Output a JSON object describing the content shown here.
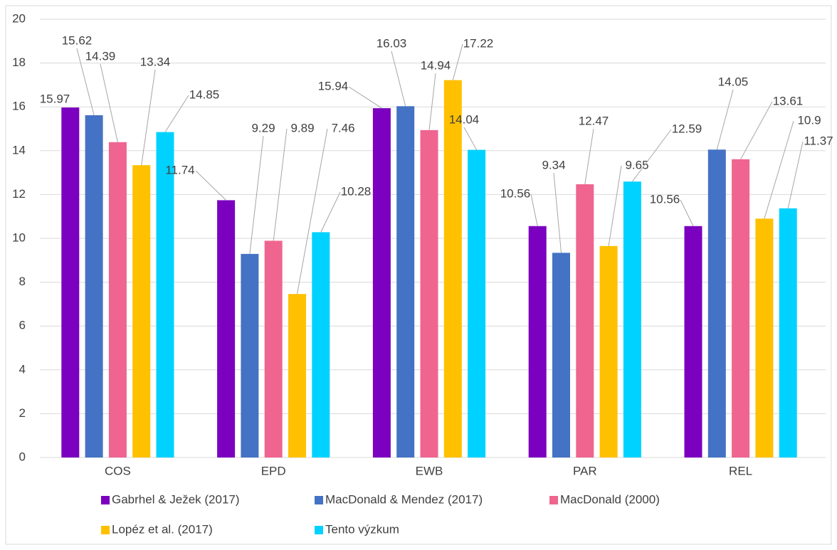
{
  "chart_data": {
    "type": "bar",
    "categories": [
      "COS",
      "EPD",
      "EWB",
      "PAR",
      "REL"
    ],
    "series": [
      {
        "name": "Gabrhel &  Ježek (2017)",
        "color": "#7b00bf",
        "values": [
          15.97,
          11.74,
          15.94,
          10.56,
          10.56
        ]
      },
      {
        "name": "MacDonald & Mendez (2017)",
        "color": "#4472c4",
        "values": [
          15.62,
          9.29,
          16.03,
          9.34,
          14.05
        ]
      },
      {
        "name": "MacDonald (2000)",
        "color": "#ef6590",
        "values": [
          14.39,
          9.89,
          14.94,
          12.47,
          13.61
        ]
      },
      {
        "name": "Lopéz et al. (2017)",
        "color": "#ffc000",
        "values": [
          13.34,
          7.46,
          17.22,
          9.65,
          10.9
        ]
      },
      {
        "name": "Tento výzkum",
        "color": "#00d2ff",
        "values": [
          14.85,
          10.28,
          14.04,
          12.59,
          11.37
        ]
      }
    ],
    "ylim": [
      0,
      20
    ],
    "yticks": [
      0,
      2,
      4,
      6,
      8,
      10,
      12,
      14,
      16,
      18,
      20
    ],
    "grid": true,
    "legend": "bottom"
  }
}
